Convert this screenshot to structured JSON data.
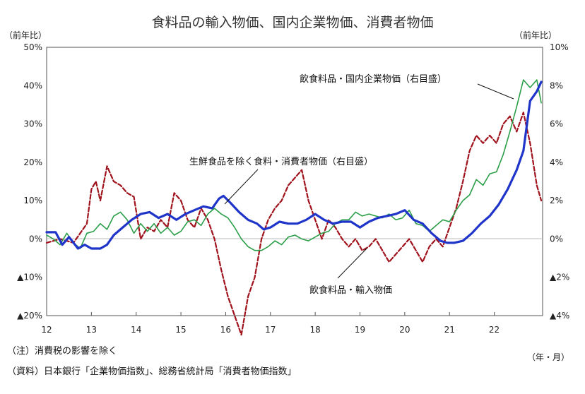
{
  "title": "食料品の輸入物価、国内企業物価、消費者物価",
  "left_unit": "（前年比）",
  "right_unit": "（前年比）",
  "x_unit": "（年・月）",
  "notes": {
    "note1": "（注）消費税の影響を除く",
    "source": "（資料）日本銀行「企業物価指数」、総務省統計局「消費者物価指数」"
  },
  "colors": {
    "import": "#a0121c",
    "domestic": "#2b9e48",
    "cpi": "#1f34c8"
  },
  "chart_data": {
    "type": "line",
    "x_range": [
      2012,
      2023.08
    ],
    "x_ticks": [
      "12",
      "13",
      "14",
      "15",
      "16",
      "17",
      "18",
      "19",
      "20",
      "21",
      "22"
    ],
    "y_left": {
      "range": [
        -20,
        50
      ],
      "ticks": [
        "▲20%",
        "▲10%",
        "0%",
        "10%",
        "20%",
        "30%",
        "40%",
        "50%"
      ],
      "tick_values": [
        -20,
        -10,
        0,
        10,
        20,
        30,
        40,
        50
      ]
    },
    "y_right": {
      "range": [
        -4,
        10
      ],
      "ticks": [
        "▲4%",
        "▲2%",
        "0%",
        "2%",
        "4%",
        "6%",
        "8%",
        "10%"
      ],
      "tick_values": [
        -4,
        -2,
        0,
        2,
        4,
        6,
        8,
        10
      ]
    },
    "annotations": {
      "domestic": "飲食料品・国内企業物価（右目盛）",
      "cpi": "生鮮食品を除く食料・消費者物価（右目盛）",
      "import": "飲食料品・輸入物価"
    },
    "series": [
      {
        "key": "import",
        "name": "飲食料品・輸入物価",
        "axis": "left",
        "style": "dashed",
        "x": [
          2012.0,
          2012.3,
          2012.6,
          2012.9,
          2013.0,
          2013.1,
          2013.2,
          2013.35,
          2013.5,
          2013.65,
          2013.8,
          2013.95,
          2014.1,
          2014.25,
          2014.4,
          2014.55,
          2014.7,
          2014.85,
          2015.0,
          2015.15,
          2015.3,
          2015.45,
          2015.6,
          2015.75,
          2015.9,
          2016.05,
          2016.2,
          2016.35,
          2016.5,
          2016.65,
          2016.8,
          2016.95,
          2017.1,
          2017.25,
          2017.4,
          2017.55,
          2017.7,
          2017.85,
          2018.0,
          2018.15,
          2018.3,
          2018.45,
          2018.6,
          2018.75,
          2018.9,
          2019.05,
          2019.2,
          2019.35,
          2019.5,
          2019.65,
          2019.8,
          2019.95,
          2020.1,
          2020.25,
          2020.4,
          2020.55,
          2020.7,
          2020.85,
          2021.0,
          2021.15,
          2021.3,
          2021.45,
          2021.6,
          2021.75,
          2021.9,
          2022.05,
          2022.2,
          2022.35,
          2022.5,
          2022.65,
          2022.8,
          2022.95,
          2023.05
        ],
        "values": [
          -1,
          0,
          -1,
          4,
          13,
          15,
          10,
          19,
          15,
          14,
          12,
          11,
          0,
          3,
          2,
          5,
          3,
          12,
          10,
          5,
          3,
          8,
          5,
          0,
          -8,
          -15,
          -20,
          -25,
          -15,
          -10,
          0,
          5,
          8,
          10,
          14,
          16,
          18,
          10,
          5,
          0,
          5,
          3,
          0,
          -2,
          0,
          -3,
          -2,
          0,
          -3,
          -6,
          -4,
          -2,
          0,
          -3,
          -6,
          -2,
          0,
          -2,
          3,
          8,
          15,
          23,
          27,
          25,
          27,
          25,
          30,
          32,
          28,
          33,
          25,
          14,
          10
        ]
      },
      {
        "key": "domestic",
        "name": "飲食料品・国内企業物価",
        "axis": "right",
        "style": "solid",
        "x": [
          2012.0,
          2012.15,
          2012.3,
          2012.45,
          2012.6,
          2012.75,
          2012.9,
          2013.05,
          2013.2,
          2013.35,
          2013.5,
          2013.65,
          2013.8,
          2013.95,
          2014.1,
          2014.25,
          2014.4,
          2014.55,
          2014.7,
          2014.85,
          2015.0,
          2015.15,
          2015.3,
          2015.45,
          2015.6,
          2015.75,
          2015.9,
          2016.05,
          2016.2,
          2016.35,
          2016.5,
          2016.65,
          2016.8,
          2016.95,
          2017.1,
          2017.25,
          2017.4,
          2017.55,
          2017.7,
          2017.85,
          2018.0,
          2018.15,
          2018.3,
          2018.45,
          2018.6,
          2018.75,
          2018.9,
          2019.05,
          2019.2,
          2019.35,
          2019.5,
          2019.65,
          2019.8,
          2019.95,
          2020.1,
          2020.25,
          2020.4,
          2020.55,
          2020.7,
          2020.85,
          2021.0,
          2021.15,
          2021.3,
          2021.45,
          2021.6,
          2021.75,
          2021.9,
          2022.05,
          2022.2,
          2022.35,
          2022.5,
          2022.65,
          2022.8,
          2022.95,
          2023.05
        ],
        "values": [
          0.2,
          0.0,
          -0.3,
          0.3,
          -0.2,
          -0.5,
          0.3,
          0.4,
          0.8,
          0.5,
          1.2,
          1.4,
          1.0,
          0.3,
          0.8,
          0.4,
          0.8,
          0.3,
          0.6,
          0.2,
          0.4,
          0.9,
          1.0,
          0.7,
          1.3,
          1.6,
          1.3,
          1.1,
          0.6,
          0.0,
          -0.4,
          -0.6,
          -0.6,
          -0.4,
          -0.1,
          -0.3,
          0.1,
          0.2,
          0.0,
          -0.1,
          0.1,
          0.3,
          0.4,
          0.8,
          1.0,
          1.0,
          1.4,
          1.2,
          1.3,
          1.2,
          1.1,
          1.3,
          1.0,
          1.1,
          1.5,
          0.8,
          0.7,
          0.4,
          0.7,
          1.0,
          0.9,
          1.5,
          2.0,
          2.3,
          3.1,
          2.8,
          3.4,
          3.5,
          4.4,
          5.6,
          6.9,
          8.3,
          7.9,
          8.3,
          7.1
        ]
      },
      {
        "key": "cpi",
        "name": "生鮮食品を除く食料・消費者物価",
        "axis": "right",
        "style": "solid",
        "x": [
          2012.0,
          2012.2,
          2012.35,
          2012.5,
          2012.7,
          2012.85,
          2013.0,
          2013.2,
          2013.35,
          2013.5,
          2013.7,
          2013.9,
          2014.1,
          2014.3,
          2014.5,
          2014.7,
          2014.9,
          2015.1,
          2015.3,
          2015.5,
          2015.7,
          2015.85,
          2015.95,
          2016.1,
          2016.3,
          2016.5,
          2016.7,
          2016.85,
          2017.0,
          2017.2,
          2017.4,
          2017.6,
          2017.8,
          2018.0,
          2018.2,
          2018.4,
          2018.6,
          2018.8,
          2019.0,
          2019.2,
          2019.4,
          2019.6,
          2019.8,
          2020.0,
          2020.2,
          2020.4,
          2020.6,
          2020.8,
          2020.95,
          2021.1,
          2021.3,
          2021.5,
          2021.7,
          2021.9,
          2022.1,
          2022.3,
          2022.5,
          2022.65,
          2022.8,
          2022.95,
          2023.05
        ],
        "values": [
          0.35,
          0.35,
          -0.3,
          0.1,
          -0.5,
          -0.3,
          -0.5,
          -0.5,
          -0.3,
          0.2,
          0.6,
          1.0,
          1.3,
          1.4,
          1.1,
          1.3,
          1.0,
          1.3,
          1.5,
          1.7,
          1.6,
          2.1,
          2.25,
          1.9,
          1.4,
          1.0,
          0.8,
          0.5,
          0.6,
          0.9,
          0.8,
          0.8,
          1.0,
          1.3,
          1.0,
          0.8,
          0.9,
          0.9,
          0.6,
          0.9,
          1.1,
          1.2,
          1.3,
          1.5,
          1.0,
          0.8,
          0.3,
          -0.1,
          -0.2,
          -0.2,
          -0.1,
          0.3,
          0.8,
          1.2,
          1.8,
          2.6,
          3.6,
          4.6,
          7.2,
          7.7,
          8.2
        ]
      }
    ]
  }
}
